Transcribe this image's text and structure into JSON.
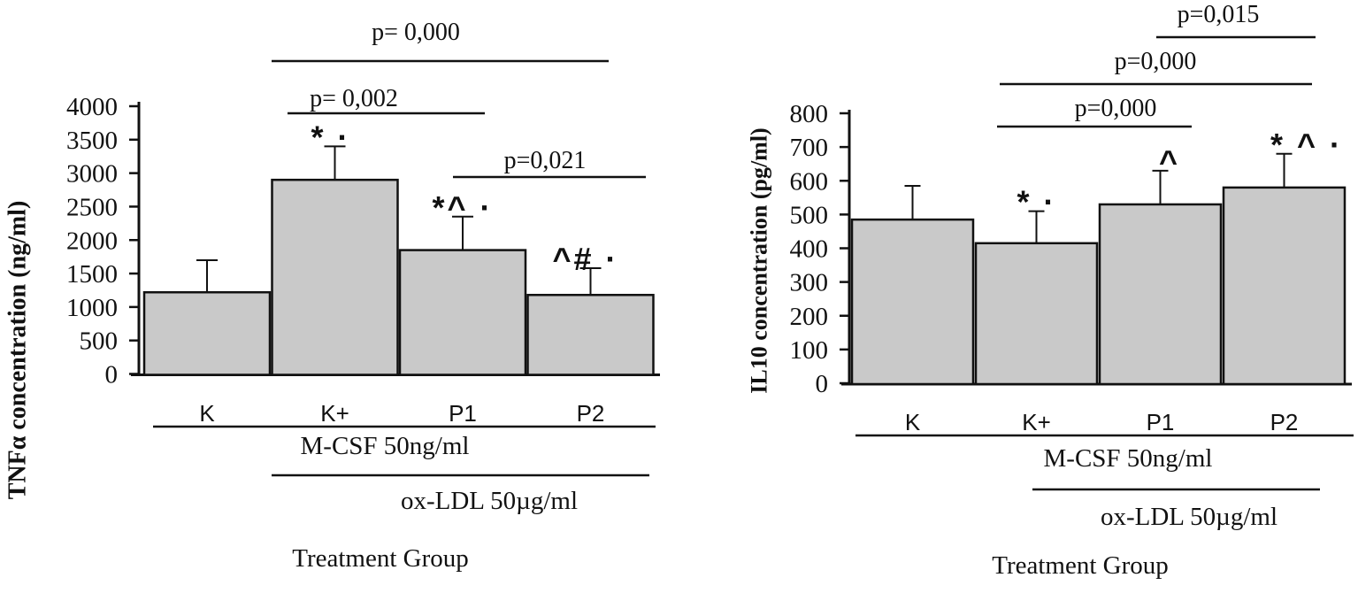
{
  "figure_type": "two-panel significance bar chart figure",
  "colors": {
    "ink": "#111111",
    "bar_fill": "#c9c9c9",
    "background": "#ffffff"
  },
  "chart_data": [
    {
      "id": "tnfa",
      "type": "bar",
      "title": "",
      "y_axis_title": "TNFα concentration (ng/ml)",
      "x_axis_title": "Treatment Group",
      "categories": [
        "K",
        "K+",
        "P1",
        "P2"
      ],
      "values": [
        1220,
        2900,
        1850,
        1180
      ],
      "error_bar_tops": [
        1700,
        3400,
        2350,
        1580
      ],
      "annotations": [
        "",
        "* ·",
        "*^ ·",
        "^# ·"
      ],
      "y_ticks": [
        "0",
        "500",
        "1000",
        "1500",
        "2000",
        "2500",
        "3000",
        "3500",
        "4000"
      ],
      "ylim": [
        0,
        4000
      ],
      "grid": false,
      "legend_position": "none",
      "comparisons": [
        {
          "label": "p= 0,000",
          "from": "K+",
          "to": "P2"
        },
        {
          "label": "p= 0,002",
          "from": "K+",
          "to": "P1"
        },
        {
          "label": "p=0,021",
          "from": "P1",
          "to": "P2"
        }
      ],
      "condition_bands": [
        {
          "label": "M-CSF 50ng/ml",
          "from": "K",
          "to": "P2"
        },
        {
          "label": "ox-LDL 50µg/ml",
          "from": "K+",
          "to": "P2"
        }
      ]
    },
    {
      "id": "il10",
      "type": "bar",
      "title": "",
      "y_axis_title": "IL10 concentration (pg/ml)",
      "x_axis_title": "Treatment Group",
      "categories": [
        "K",
        "K+",
        "P1",
        "P2"
      ],
      "values": [
        485,
        415,
        530,
        580
      ],
      "error_bar_tops": [
        585,
        510,
        630,
        680
      ],
      "annotations": [
        "",
        "* ·",
        "^",
        "* ^ ·"
      ],
      "y_ticks": [
        "0",
        "100",
        "200",
        "300",
        "400",
        "500",
        "600",
        "700",
        "800"
      ],
      "ylim": [
        0,
        800
      ],
      "grid": false,
      "legend_position": "none",
      "comparisons": [
        {
          "label": "p=0,015",
          "from": "P1",
          "to": "P2"
        },
        {
          "label": "p=0,000",
          "from": "K+",
          "to": "P2"
        },
        {
          "label": "p=0,000",
          "from": "K+",
          "to": "P1"
        }
      ],
      "condition_bands": [
        {
          "label": "M-CSF 50ng/ml",
          "from": "K",
          "to": "P2"
        },
        {
          "label": "ox-LDL 50µg/ml",
          "from": "K+",
          "to": "P2"
        }
      ]
    }
  ]
}
